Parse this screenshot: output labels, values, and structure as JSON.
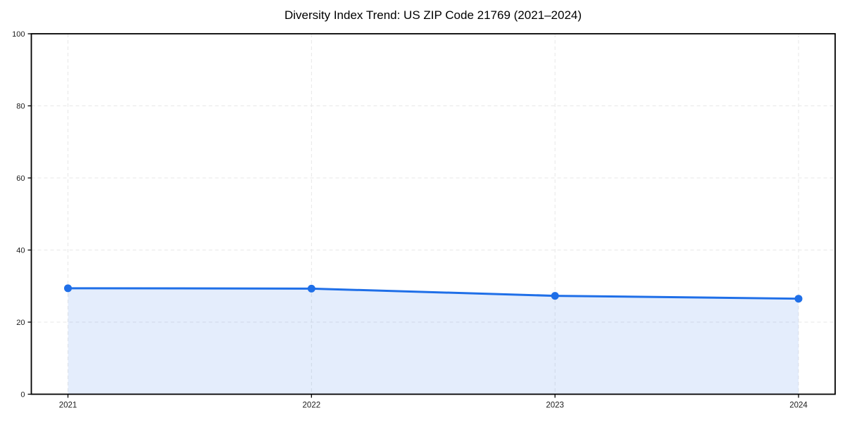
{
  "page": {
    "background": "#ffffff"
  },
  "chart_data": {
    "type": "area",
    "title": "Diversity Index Trend: US ZIP Code 21769 (2021–2024)",
    "categories": [
      "2021",
      "2022",
      "2023",
      "2024"
    ],
    "series": [
      {
        "name": "Diversity Index",
        "values": [
          29.4,
          29.3,
          27.3,
          26.5
        ]
      }
    ],
    "xlabel": "",
    "ylabel": "",
    "ylim": [
      0,
      100
    ],
    "yticks": [
      0,
      20,
      40,
      60,
      80,
      100
    ],
    "grid": "dashed-both-axes",
    "legend": "none",
    "marker": "circle",
    "colors": {
      "line": "#1f6fe8",
      "fill": "#1f6fe8",
      "fill_opacity": 0.12,
      "grid": "#e7e7e7",
      "axis": "#000000",
      "tick_label": "#1a1a1a",
      "title": "#000000"
    }
  }
}
